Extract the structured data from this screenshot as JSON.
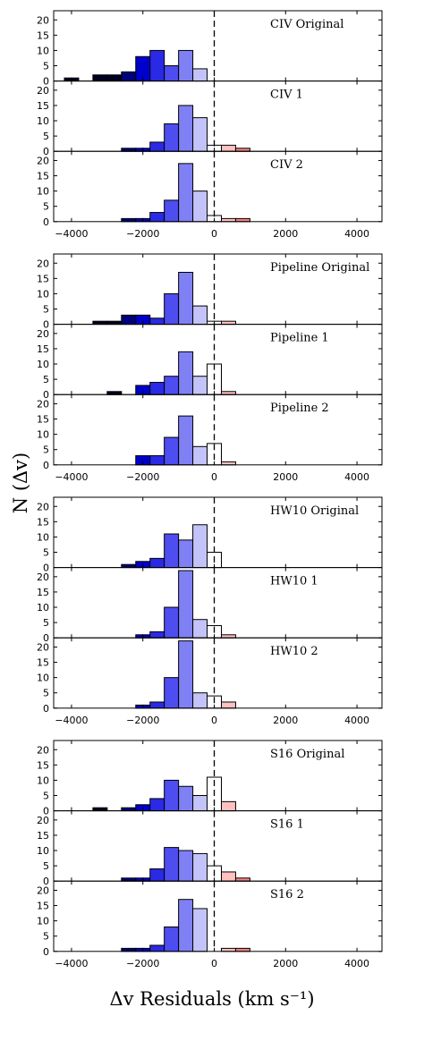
{
  "figure": {
    "ylabel": "N (Δv)",
    "xlabel": "Δv Residuals (km s⁻¹)"
  },
  "colors": {
    "blue": [
      "#000022",
      "#00007a",
      "#0000cc",
      "#2a2ae6",
      "#4d4df0",
      "#8080f5",
      "#c3c3fa"
    ],
    "red": [
      "#ffc0c0",
      "#f78080",
      "#ec4545",
      "#cc0000",
      "#990000"
    ],
    "zero_bin": "#ffffff",
    "edge": "#000000"
  },
  "chart_data": [
    {
      "group": "CIV",
      "type": "bar",
      "x_tick_labels": [
        "-4000",
        "-2000",
        "0",
        "2000",
        "4000"
      ],
      "xlim": [
        -4500,
        4700
      ],
      "ylim": [
        0,
        23
      ],
      "y_tick_labels": [
        "0",
        "5",
        "10",
        "15",
        "20"
      ],
      "reference_line": 0,
      "bin_centers": [
        -4000,
        -3600,
        -3200,
        -2800,
        -2400,
        -2000,
        -1600,
        -1200,
        -800,
        -400,
        0,
        400,
        800,
        1200,
        1600,
        2000,
        2400,
        2800,
        3200,
        3600,
        4000
      ],
      "panels": [
        {
          "label": "CIV Original",
          "values": [
            1,
            0,
            2,
            2,
            3,
            8,
            10,
            5,
            10,
            4,
            0,
            0,
            0,
            0,
            0,
            0,
            0,
            0,
            0,
            0,
            0
          ],
          "offset_bins": 0
        },
        {
          "label": "CIV 1",
          "values": [
            0,
            0,
            0,
            0,
            1,
            1,
            3,
            9,
            15,
            11,
            2,
            2,
            1,
            0,
            0,
            0,
            0,
            0,
            0,
            0,
            0
          ],
          "offset_bins": 0
        },
        {
          "label": "CIV 2",
          "values": [
            0,
            0,
            0,
            0,
            1,
            1,
            3,
            7,
            19,
            10,
            2,
            1,
            1,
            0,
            0,
            0,
            0,
            0,
            0,
            0,
            0
          ],
          "offset_bins": 0
        }
      ]
    },
    {
      "group": "Pipeline",
      "type": "bar",
      "x_tick_labels": [
        "-4000",
        "-2000",
        "0",
        "2000",
        "4000"
      ],
      "xlim": [
        -4500,
        4700
      ],
      "ylim": [
        0,
        23
      ],
      "y_tick_labels": [
        "0",
        "5",
        "10",
        "15",
        "20"
      ],
      "reference_line": 0,
      "panels": [
        {
          "label": "Pipeline Original",
          "values": [
            0,
            0,
            1,
            1,
            3,
            3,
            2,
            10,
            17,
            6,
            1,
            1,
            0,
            0,
            0,
            0,
            0,
            0,
            0,
            0,
            0
          ],
          "offset_bins": 0
        },
        {
          "label": "Pipeline 1",
          "values": [
            0,
            0,
            0,
            1,
            0,
            3,
            4,
            6,
            14,
            6,
            10,
            1,
            0,
            0,
            0,
            0,
            0,
            0,
            0,
            0,
            0
          ],
          "offset_bins": 0
        },
        {
          "label": "Pipeline 2",
          "values": [
            0,
            0,
            0,
            0,
            0,
            3,
            3,
            9,
            16,
            6,
            7,
            1,
            0,
            0,
            0,
            0,
            0,
            0,
            0,
            0,
            0
          ],
          "offset_bins": 0
        }
      ]
    },
    {
      "group": "HW10",
      "type": "bar",
      "x_tick_labels": [
        "-4000",
        "-2000",
        "0",
        "2000",
        "4000"
      ],
      "xlim": [
        -4500,
        4700
      ],
      "ylim": [
        0,
        23
      ],
      "y_tick_labels": [
        "0",
        "5",
        "10",
        "15",
        "20"
      ],
      "reference_line": 0,
      "panels": [
        {
          "label": "HW10 Original",
          "values": [
            0,
            0,
            0,
            0,
            1,
            2,
            3,
            11,
            9,
            14,
            5,
            0,
            0,
            0,
            0,
            0,
            0,
            0,
            0,
            0,
            0
          ],
          "offset_bins": 0
        },
        {
          "label": "HW10 1",
          "values": [
            0,
            0,
            0,
            0,
            0,
            1,
            2,
            10,
            22,
            6,
            4,
            1,
            0,
            0,
            0,
            0,
            0,
            0,
            0,
            0,
            0
          ],
          "offset_bins": 0
        },
        {
          "label": "HW10 2",
          "values": [
            0,
            0,
            0,
            0,
            0,
            1,
            2,
            10,
            22,
            5,
            4,
            2,
            0,
            0,
            0,
            0,
            0,
            0,
            0,
            0,
            0
          ],
          "offset_bins": 0
        }
      ]
    },
    {
      "group": "S16",
      "type": "bar",
      "x_tick_labels": [
        "-4000",
        "-2000",
        "0",
        "2000",
        "4000"
      ],
      "xlim": [
        -4500,
        4700
      ],
      "ylim": [
        0,
        23
      ],
      "y_tick_labels": [
        "0",
        "5",
        "10",
        "15",
        "20"
      ],
      "reference_line": 0,
      "panels": [
        {
          "label": "S16 Original",
          "values": [
            0,
            0,
            1,
            0,
            1,
            2,
            4,
            10,
            8,
            5,
            11,
            3,
            0,
            0,
            0,
            0,
            0,
            0,
            0,
            0,
            0
          ],
          "offset_bins": 0
        },
        {
          "label": "S16 1",
          "values": [
            0,
            0,
            0,
            0,
            1,
            1,
            4,
            11,
            10,
            9,
            5,
            3,
            1,
            0,
            0,
            0,
            0,
            0,
            0,
            0,
            0
          ],
          "offset_bins": 0
        },
        {
          "label": "S16 2",
          "values": [
            0,
            0,
            0,
            0,
            1,
            1,
            2,
            8,
            17,
            14,
            0,
            1,
            1,
            0,
            0,
            0,
            0,
            0,
            0,
            0,
            0
          ],
          "offset_bins": 0
        }
      ]
    }
  ]
}
